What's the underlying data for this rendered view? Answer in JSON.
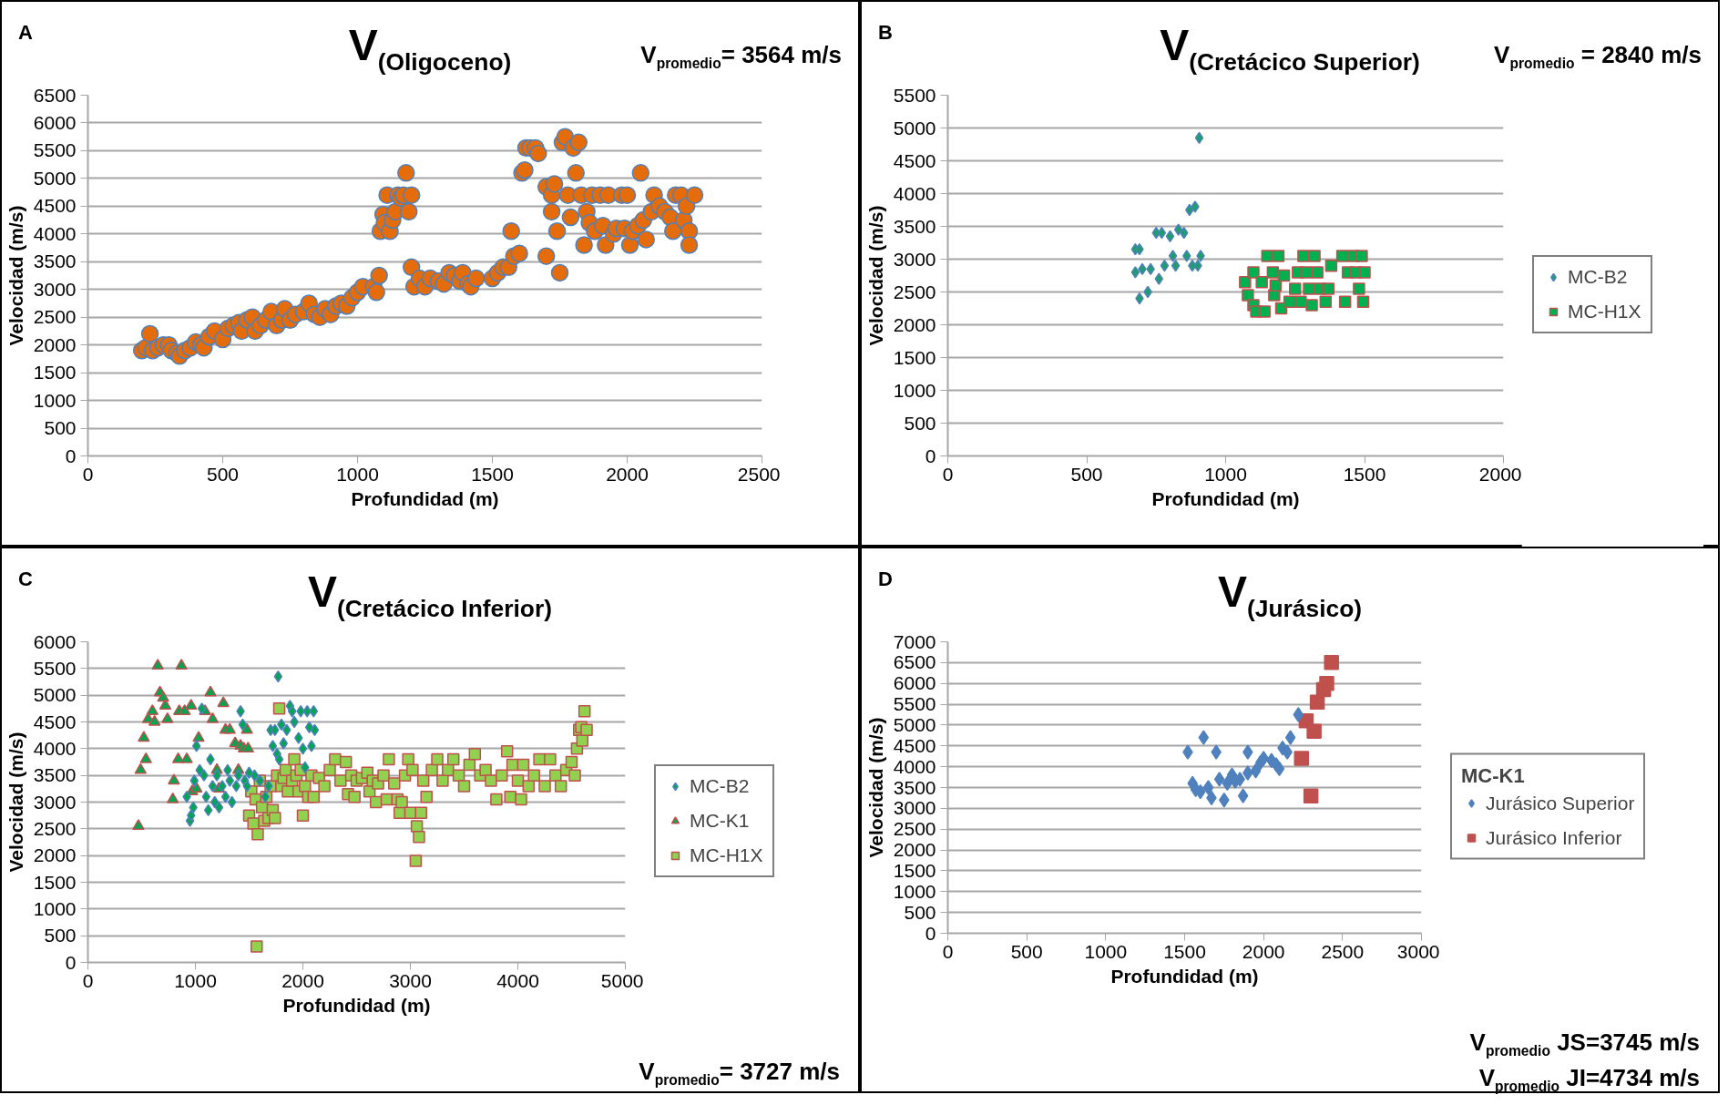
{
  "chart_data": [
    {
      "type": "scatter",
      "title": "V$_{(Oligoceno)}$",
      "xlabel": "Profundidad (m)",
      "ylabel": "Velocidad (m/s)",
      "annotations": [
        "A",
        "V$_{promedio}$= 3564 m/s"
      ],
      "xlim": [
        0,
        2500
      ],
      "xticks": [
        0,
        500,
        1000,
        1500,
        2000,
        2500
      ],
      "ylim": [
        0,
        6500
      ],
      "yticks": [
        0,
        500,
        1000,
        1500,
        2000,
        2500,
        3000,
        3500,
        4000,
        4500,
        5000,
        5500,
        6000,
        6500
      ],
      "grid": "y",
      "legend": false,
      "marker": "circle",
      "series": [
        {
          "color": "#e46c0a",
          "x": [
            200,
            215,
            230,
            240,
            260,
            280,
            300,
            310,
            330,
            340,
            360,
            380,
            400,
            420,
            430,
            450,
            470,
            500,
            520,
            540,
            560,
            570,
            590,
            610,
            620,
            640,
            660,
            680,
            700,
            720,
            730,
            750,
            770,
            800,
            820,
            840,
            860,
            880,
            900,
            920,
            940,
            960,
            980,
            1000,
            1020,
            1060,
            1070,
            1080,
            1085,
            1095,
            1100,
            1110,
            1120,
            1130,
            1140,
            1150,
            1160,
            1170,
            1180,
            1190,
            1200,
            1200,
            1210,
            1230,
            1250,
            1270,
            1300,
            1320,
            1340,
            1360,
            1380,
            1390,
            1410,
            1420,
            1440,
            1500,
            1520,
            1540,
            1560,
            1570,
            1580,
            1600,
            1610,
            1620,
            1625,
            1640,
            1660,
            1670,
            1700,
            1700,
            1720,
            1720,
            1730,
            1740,
            1750,
            1760,
            1770,
            1780,
            1790,
            1800,
            1810,
            1820,
            1830,
            1840,
            1850,
            1860,
            1870,
            1880,
            1900,
            1910,
            1920,
            1930,
            1950,
            1960,
            1980,
            1990,
            2000,
            2010,
            2020,
            2040,
            2050,
            2060,
            2070,
            2090,
            2100,
            2120,
            2140,
            2160,
            2170,
            2180,
            2200,
            2210,
            2220,
            2230,
            2230,
            2250
          ],
          "values": [
            1900,
            1950,
            2200,
            1900,
            1950,
            2000,
            2000,
            1900,
            1850,
            1800,
            1900,
            1950,
            2050,
            2000,
            1950,
            2150,
            2250,
            2100,
            2300,
            2350,
            2400,
            2250,
            2450,
            2500,
            2250,
            2350,
            2450,
            2600,
            2350,
            2450,
            2650,
            2450,
            2550,
            2600,
            2750,
            2550,
            2500,
            2650,
            2550,
            2700,
            2750,
            2700,
            2850,
            2950,
            3050,
            3050,
            2950,
            3250,
            4050,
            4350,
            4200,
            4700,
            4050,
            4250,
            4400,
            4700,
            4650,
            4700,
            5100,
            4400,
            4700,
            3400,
            3050,
            3200,
            3050,
            3200,
            3150,
            3100,
            3300,
            3250,
            3150,
            3300,
            3100,
            3050,
            3200,
            3200,
            3300,
            3400,
            3400,
            4050,
            3600,
            3650,
            5100,
            5150,
            5550,
            5550,
            5550,
            5450,
            3600,
            4850,
            4700,
            4400,
            4900,
            4050,
            3300,
            5650,
            5750,
            4700,
            4300,
            5550,
            5100,
            5650,
            4700,
            3800,
            4400,
            4200,
            4700,
            4050,
            4700,
            4150,
            3800,
            4700,
            4000,
            4100,
            4700,
            4100,
            4700,
            3800,
            4050,
            4150,
            5100,
            4250,
            3900,
            4400,
            4700,
            4500,
            4400,
            4300,
            4050,
            4700,
            4700,
            4250,
            4500,
            4050,
            3800,
            4700
          ]
        }
      ]
    },
    {
      "type": "scatter",
      "title": "V$_{(Cretácico Superior)}$",
      "xlabel": "Profundidad (m)",
      "ylabel": "Velocidad (m/s)",
      "annotations": [
        "B",
        "V$_{promedio}$ = 2840 m/s"
      ],
      "xlim": [
        0,
        2000
      ],
      "xticks": [
        0,
        500,
        1000,
        1500,
        2000
      ],
      "ylim": [
        0,
        5500
      ],
      "yticks": [
        0,
        500,
        1000,
        1500,
        2000,
        2500,
        3000,
        3500,
        4000,
        4500,
        5000,
        5500
      ],
      "grid": "y",
      "legend": "right",
      "series": [
        {
          "name": "MC-B2",
          "color": "#1e9e6e",
          "marker": "diamond",
          "x": [
            675,
            690,
            675,
            690,
            700,
            720,
            730,
            750,
            760,
            770,
            780,
            800,
            810,
            820,
            830,
            850,
            860,
            870,
            880,
            890,
            900,
            905,
            910
          ],
          "values": [
            3150,
            3150,
            2800,
            2400,
            2850,
            2500,
            2850,
            3400,
            2700,
            3400,
            2900,
            3350,
            3050,
            2900,
            3450,
            3400,
            3050,
            3750,
            2900,
            3800,
            2900,
            4850,
            3050
          ]
        },
        {
          "name": "MC-H1X",
          "color": "#00b050",
          "marker": "square",
          "x": [
            1070,
            1080,
            1100,
            1100,
            1110,
            1120,
            1130,
            1140,
            1150,
            1170,
            1175,
            1180,
            1190,
            1200,
            1210,
            1230,
            1250,
            1260,
            1270,
            1280,
            1290,
            1300,
            1310,
            1320,
            1330,
            1340,
            1360,
            1370,
            1380,
            1420,
            1430,
            1440,
            1460,
            1470,
            1480,
            1490,
            1495,
            1500
          ],
          "values": [
            2650,
            2450,
            2800,
            2300,
            2200,
            null,
            2650,
            2200,
            3050,
            2800,
            2450,
            2600,
            3050,
            2250,
            2750,
            2350,
            2550,
            2800,
            2350,
            3050,
            2800,
            2550,
            2300,
            3050,
            2800,
            2550,
            2350,
            2550,
            2900,
            3050,
            2350,
            2800,
            3050,
            2800,
            2550,
            3050,
            2350,
            2800
          ]
        }
      ]
    },
    {
      "type": "scatter",
      "title": "V$_{(Cretácico Inferior)}$",
      "xlabel": "Profundidad (m)",
      "ylabel": "Velocidad (m/s)",
      "annotations": [
        "C",
        "V$_{promedio}$= 3727 m/s"
      ],
      "xlim": [
        0,
        5000
      ],
      "xticks": [
        0,
        1000,
        2000,
        3000,
        4000,
        5000
      ],
      "ylim": [
        0,
        6000
      ],
      "yticks": [
        0,
        500,
        1000,
        1500,
        2000,
        2500,
        3000,
        3500,
        4000,
        4500,
        5000,
        5500,
        6000
      ],
      "grid": "y",
      "legend": "right",
      "series": [
        {
          "name": "MC-B2",
          "color": "#00a650",
          "marker": "diamond",
          "x": [
            920,
            950,
            960,
            980,
            990,
            1010,
            1040,
            1060,
            1080,
            1100,
            1120,
            1140,
            1160,
            1180,
            1200,
            1220,
            1250,
            1280,
            1300,
            1320,
            1340,
            1380,
            1400,
            1420,
            1440,
            1460,
            1480,
            1500,
            1550,
            1600,
            1650,
            1680,
            1700,
            1720,
            1740,
            1760,
            1770,
            1780,
            1800,
            1820,
            1850,
            1880,
            1900,
            1920,
            1960,
            1980,
            2000,
            2020,
            2040,
            2060,
            2080,
            2100,
            2110
          ],
          "values": [
            3100,
            2650,
            2750,
            2900,
            3400,
            4050,
            3600,
            4750,
            3500,
            3100,
            2850,
            3800,
            3300,
            3000,
            3500,
            2900,
            3300,
            3100,
            3600,
            3400,
            3000,
            3300,
            3500,
            4700,
            4450,
            3400,
            3300,
            3550,
            3500,
            3400,
            3100,
            3300,
            4350,
            4050,
            4350,
            3900,
            5350,
            3800,
            4450,
            4100,
            4350,
            4800,
            4700,
            4500,
            4200,
            4700,
            4000,
            3650,
            4700,
            4400,
            4050,
            4700,
            4350
          ]
        },
        {
          "name": "MC-K1",
          "color": "#00a650",
          "marker": "triangle",
          "x": [
            470,
            490,
            520,
            540,
            560,
            600,
            620,
            650,
            670,
            700,
            720,
            740,
            790,
            800,
            840,
            850,
            870,
            900,
            920,
            960,
            970,
            1000,
            1010,
            1030,
            1090,
            1140,
            1160,
            1200,
            1220,
            1260,
            1280,
            1320,
            1370,
            1400,
            1420,
            1450,
            1480,
            1490
          ],
          "values": [
            2550,
            3600,
            4200,
            3800,
            4550,
            4700,
            4500,
            5550,
            5050,
            4950,
            4800,
            4550,
            3050,
            3400,
            3800,
            4700,
            5550,
            4700,
            3800,
            4800,
            3200,
            null,
            3250,
            4200,
            4700,
            5050,
            4550,
            3600,
            3250,
            4850,
            4350,
            4350,
            4100,
            3600,
            4050,
            4000,
            4350,
            4000
          ]
        },
        {
          "name": "MC-H1X",
          "color": "#92d050",
          "marker": "square",
          "x": [
            1500,
            1520,
            1540,
            1560,
            1570,
            1580,
            1600,
            1620,
            1640,
            1660,
            1680,
            1700,
            1720,
            1740,
            1760,
            1780,
            1800,
            1820,
            1840,
            1860,
            1900,
            1920,
            1940,
            1960,
            1980,
            2000,
            2020,
            2050,
            2080,
            2100,
            2150,
            2200,
            2250,
            2300,
            2350,
            2400,
            2420,
            2450,
            2480,
            2500,
            2550,
            2600,
            2620,
            2650,
            2680,
            2700,
            2750,
            2780,
            2800,
            2850,
            2880,
            2900,
            2920,
            2950,
            2980,
            3000,
            3020,
            3050,
            3060,
            3080,
            3100,
            3120,
            3150,
            3200,
            3250,
            3300,
            3350,
            3400,
            3450,
            3500,
            3550,
            3600,
            3650,
            3700,
            3750,
            3800,
            3850,
            3900,
            3930,
            3950,
            4000,
            4030,
            4050,
            4100,
            4150,
            4200,
            4250,
            4300,
            4350,
            4400,
            4450,
            4500,
            4530,
            4550,
            4570,
            4590,
            4600,
            4620,
            4640
          ],
          "values": [
            2750,
            3200,
            2600,
            3050,
            300,
            2400,
            3400,
            2900,
            2650,
            3100,
            2700,
            3300,
            2850,
            2700,
            3500,
            4750,
            3300,
            3450,
            3600,
            3200,
            3400,
            3800,
            3500,
            3200,
            3600,
            2750,
            3300,
            3100,
            3500,
            3100,
            3450,
            3300,
            3600,
            3800,
            3400,
            3750,
            3150,
            3500,
            3100,
            3400,
            3450,
            3550,
            3200,
            3400,
            3000,
            3350,
            3500,
            3050,
            3800,
            3350,
            3050,
            2800,
            3000,
            3500,
            3800,
            2800,
            3600,
            1900,
            2550,
            2350,
            2800,
            3400,
            3100,
            3600,
            3800,
            3400,
            3600,
            3800,
            3500,
            3300,
            3700,
            3900,
            3500,
            3600,
            3400,
            3050,
            3500,
            3950,
            3100,
            3700,
            3400,
            3050,
            3700,
            3300,
            3500,
            3800,
            3300,
            3800,
            3500,
            3300,
            3600,
            3750,
            3500,
            4000,
            4350,
            4400,
            4150,
            4700,
            4350
          ]
        }
      ]
    },
    {
      "type": "scatter",
      "title": "V$_{(Jurásico)}$",
      "xlabel": "Profundidad (m)",
      "ylabel": "Velocidad (m/s)",
      "legend_title": "MC-K1",
      "annotations": [
        "D",
        "V$_{promedio}$ JS=3745 m/s",
        "V$_{promedio}$ JI=4734 m/s"
      ],
      "xlim": [
        0,
        3000
      ],
      "xticks": [
        0,
        500,
        1000,
        1500,
        2000,
        2500,
        3000
      ],
      "ylim": [
        0,
        7000
      ],
      "yticks": [
        0,
        500,
        1000,
        1500,
        2000,
        2500,
        3000,
        3500,
        4000,
        4500,
        5000,
        5500,
        6000,
        6500,
        7000
      ],
      "grid": "y",
      "legend": "right",
      "series": [
        {
          "name": "Jurásico Superior",
          "color": "#4f81bd",
          "marker": "diamond",
          "x": [
            1520,
            1550,
            1570,
            1600,
            1620,
            1650,
            1670,
            1700,
            1720,
            1750,
            1770,
            1800,
            1820,
            1850,
            1870,
            1900,
            1900,
            1950,
            1980,
            2000,
            2050,
            2080,
            2100,
            2120,
            2150,
            2170,
            2220
          ],
          "values": [
            4350,
            3600,
            3450,
            3400,
            4700,
            3500,
            3250,
            4350,
            3700,
            3200,
            3600,
            3800,
            3650,
            3700,
            3300,
            4350,
            3850,
            3900,
            4100,
            4200,
            4150,
            4050,
            3950,
            4450,
            4350,
            4700,
            5250
          ]
        },
        {
          "name": "Jurásico Inferior",
          "color": "#c0504d",
          "marker": "square",
          "x": [
            2240,
            2270,
            2300,
            2320,
            2340,
            2360,
            2380,
            2400,
            2430
          ],
          "values": [
            4200,
            5100,
            3300,
            4850,
            5550,
            null,
            5850,
            6000,
            6500
          ]
        }
      ]
    }
  ]
}
